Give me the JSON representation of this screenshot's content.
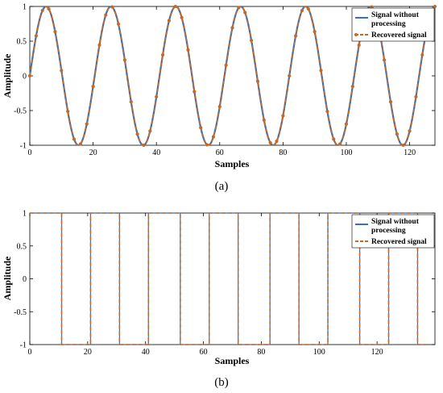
{
  "chart_data": [
    {
      "panel": "a",
      "type": "line",
      "caption": "(a)",
      "xlabel": "Samples",
      "ylabel": "Amplitude",
      "xlim": [
        0,
        128
      ],
      "ylim": [
        -1,
        1
      ],
      "xticks": [
        0,
        20,
        40,
        60,
        80,
        100,
        120
      ],
      "yticks": [
        -1,
        -0.5,
        0,
        0.5,
        1
      ],
      "grid": false,
      "legend_position": "top-right",
      "signal": {
        "shape": "sine",
        "period_samples": 20.5,
        "start_value": 0
      },
      "series": [
        {
          "name": "Signal without processing",
          "color": "#3b6fb6",
          "style": "solid"
        },
        {
          "name": "Recovered signal",
          "color": "#c06a2b",
          "style": "dashed-with-markers"
        }
      ],
      "legend_labels": [
        "Signal without",
        "processing",
        "Recovered signal"
      ]
    },
    {
      "panel": "b",
      "type": "line",
      "caption": "(b)",
      "xlabel": "Samples",
      "ylabel": "Amplitude",
      "xlim": [
        0,
        140
      ],
      "ylim": [
        -1,
        1
      ],
      "xticks": [
        0,
        20,
        40,
        60,
        80,
        100,
        120
      ],
      "yticks": [
        -1,
        -0.5,
        0,
        0.5,
        1
      ],
      "grid": false,
      "legend_position": "top-right",
      "signal": {
        "shape": "square",
        "values": [
          {
            "from": 0,
            "to": 11,
            "value": 1
          },
          {
            "from": 11,
            "to": 21,
            "value": -1
          },
          {
            "from": 21,
            "to": 31,
            "value": 1
          },
          {
            "from": 31,
            "to": 41,
            "value": -1
          },
          {
            "from": 41,
            "to": 52,
            "value": 1
          },
          {
            "from": 52,
            "to": 62,
            "value": -1
          },
          {
            "from": 62,
            "to": 72,
            "value": 1
          },
          {
            "from": 72,
            "to": 83,
            "value": -1
          },
          {
            "from": 83,
            "to": 93,
            "value": 1
          },
          {
            "from": 93,
            "to": 103,
            "value": -1
          },
          {
            "from": 103,
            "to": 114,
            "value": 1
          },
          {
            "from": 114,
            "to": 124,
            "value": -1
          },
          {
            "from": 124,
            "to": 134,
            "value": 1
          },
          {
            "from": 134,
            "to": 137,
            "value": -1
          }
        ]
      },
      "series": [
        {
          "name": "Signal without processing",
          "color": "#3b6fb6",
          "style": "solid"
        },
        {
          "name": "Recovered signal",
          "color": "#c06a2b",
          "style": "dashed"
        }
      ],
      "legend_labels": [
        "Signal without",
        "processing",
        "Recovered signal"
      ]
    }
  ]
}
